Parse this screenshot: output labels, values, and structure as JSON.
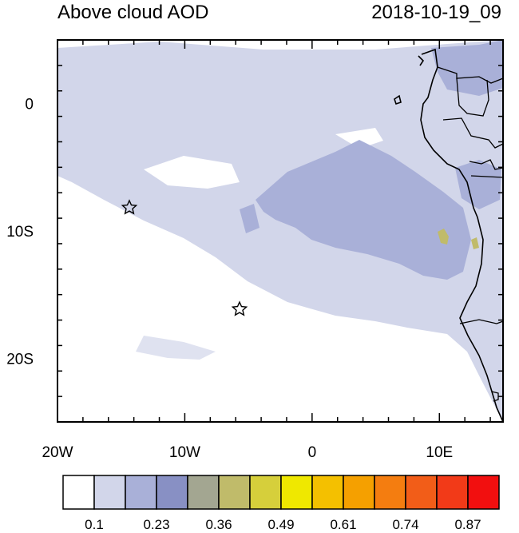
{
  "header": {
    "title": "Above cloud AOD",
    "timestamp": "2018-10-19_09"
  },
  "axes": {
    "x_ticks": [
      {
        "value": -20,
        "label": "20W"
      },
      {
        "value": -10,
        "label": "10W"
      },
      {
        "value": 0,
        "label": "0"
      },
      {
        "value": 10,
        "label": "10E"
      }
    ],
    "y_ticks": [
      {
        "value": 0,
        "label": "0"
      },
      {
        "value": -10,
        "label": "10S"
      },
      {
        "value": -20,
        "label": "20S"
      }
    ],
    "lon_range": [
      -20,
      15
    ],
    "lat_range": [
      -25,
      5
    ]
  },
  "markers": [
    {
      "name": "star-marker-north",
      "lon": -14.3,
      "lat": -8
    },
    {
      "name": "star-marker-south",
      "lon": -5.7,
      "lat": -16
    }
  ],
  "colorbar": {
    "colors": [
      "#ffffff",
      "#d2d6ea",
      "#a9b0d8",
      "#8890c4",
      "#a3a691",
      "#c0bb6a",
      "#d6cf3b",
      "#efe800",
      "#f4c000",
      "#f5a000",
      "#f47d10",
      "#f25d18",
      "#f23a18",
      "#f20f0f"
    ],
    "labels": [
      "0.1",
      "0.23",
      "0.36",
      "0.49",
      "0.61",
      "0.74",
      "0.87"
    ]
  },
  "plume_colors": {
    "light": "#d2d6ea",
    "medium": "#a9b0d8",
    "high": "#c0bb6a"
  }
}
